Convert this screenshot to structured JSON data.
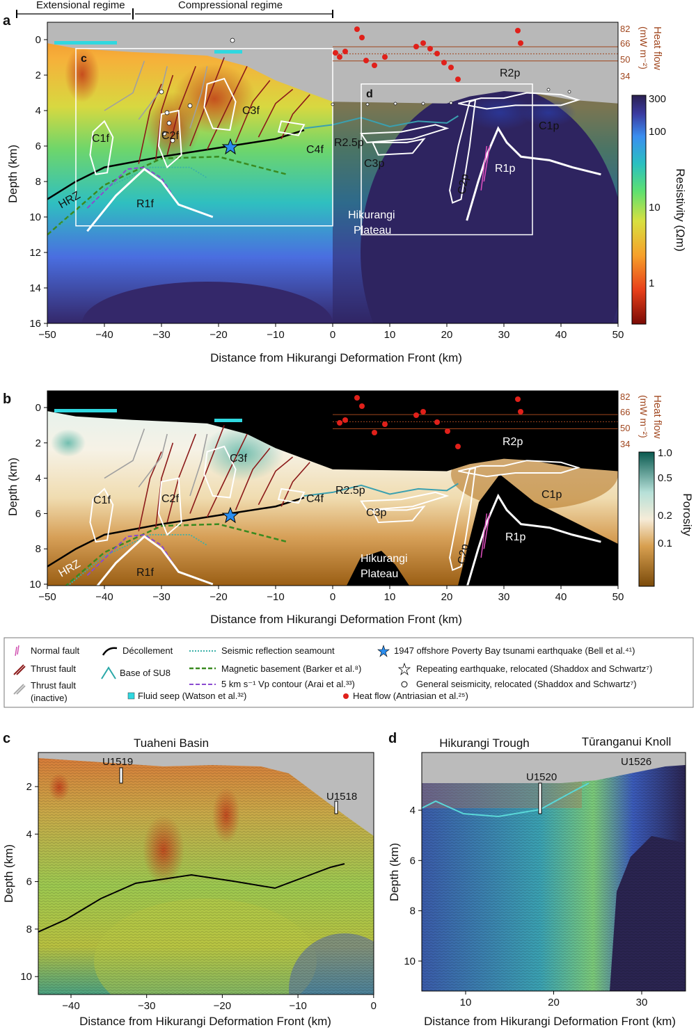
{
  "top_labels": {
    "extensional": "Extensional regime",
    "compressional": "Compressional regime"
  },
  "panel_a": {
    "letter": "a",
    "xlabel": "Distance from Hikurangi Deformation Front (km)",
    "ylabel": "Depth (km)",
    "x_ticks": [
      "−50",
      "−40",
      "−30",
      "−20",
      "−10",
      "0",
      "10",
      "20",
      "30",
      "40",
      "50"
    ],
    "y_ticks": [
      "0",
      "2",
      "4",
      "6",
      "8",
      "10",
      "12",
      "14",
      "16"
    ],
    "heat_flow_ticks": [
      "82",
      "66",
      "50",
      "34"
    ],
    "heat_flow_label": "Heat flow",
    "heat_flow_units": "(mW m⁻²)",
    "colorbar_label": "Resistivity (Ωm)",
    "colorbar_ticks": [
      "300",
      "100",
      "10",
      "1"
    ],
    "box_c": "c",
    "box_d": "d",
    "features": {
      "c1f": "C1f",
      "c2f": "C2f",
      "c3f": "C3f",
      "c4f": "C4f",
      "r1f": "R1f",
      "hrz": "HRZ",
      "r2p": "R2p",
      "r25p": "R2.5p",
      "c3p": "C3p",
      "c2p": "C2p",
      "r1p": "R1p",
      "c1p": "C1p",
      "plateau1": "Hikurangi",
      "plateau2": "Plateau"
    }
  },
  "panel_b": {
    "letter": "b",
    "xlabel": "Distance from Hikurangi Deformation Front (km)",
    "ylabel": "Depth (km)",
    "x_ticks": [
      "−50",
      "−40",
      "−30",
      "−20",
      "−10",
      "0",
      "10",
      "20",
      "30",
      "40",
      "50"
    ],
    "y_ticks": [
      "0",
      "2",
      "4",
      "6",
      "8",
      "10"
    ],
    "heat_flow_ticks": [
      "82",
      "66",
      "50",
      "34"
    ],
    "heat_flow_label": "Heat flow",
    "heat_flow_units": "(mW m⁻²)",
    "colorbar_label": "Porosity",
    "colorbar_ticks": [
      "1.0",
      "0.5",
      "0.2",
      "0.1"
    ]
  },
  "legend": {
    "normal_fault": "Normal fault",
    "thrust_fault": "Thrust fault",
    "thrust_inactive_1": "Thrust fault",
    "thrust_inactive_2": "(inactive)",
    "decollement": "Décollement",
    "base_su8": "Base of SU8",
    "seamount": "Seismic reflection seamount",
    "magnetic": "Magnetic basement (Barker et al.⁸)",
    "vp": "5 km s⁻¹ Vp contour (Arai et al.³³)",
    "fluid_seep": "Fluid seep (Watson et al.³²)",
    "eq1947": "1947 offshore Poverty Bay tsunami earthquake (Bell et al.⁴¹)",
    "repeating": "Repeating earthquake, relocated (Shaddox and Schwartz⁷)",
    "general": "General seismicity, relocated  (Shaddox and Schwartz⁷)",
    "heat_flow": "Heat flow (Antriasian et al.²⁵)"
  },
  "panel_c": {
    "letter": "c",
    "title": "Tuaheni Basin",
    "xlabel": "Distance from Hikurangi Deformation Front (km)",
    "ylabel": "Depth (km)",
    "x_ticks": [
      "−40",
      "−30",
      "−20",
      "−10",
      "0"
    ],
    "y_ticks": [
      "2",
      "4",
      "6",
      "8",
      "10"
    ],
    "wells": [
      "U1519",
      "U1518"
    ]
  },
  "panel_d": {
    "letter": "d",
    "title_left": "Hikurangi Trough",
    "title_right": "Tūranganui Knoll",
    "xlabel": "Distance from Hikurangi Deformation Front (km)",
    "ylabel": "Depth (km)",
    "x_ticks": [
      "10",
      "20",
      "30"
    ],
    "y_ticks": [
      "4",
      "6",
      "8",
      "10"
    ],
    "wells": [
      "U1520",
      "U1526"
    ]
  },
  "colors": {
    "heat_flow": "#e0201a",
    "seep": "#30d8e0",
    "decollement": "#000000",
    "thrust": "#8b1a1a",
    "axis_brown": "#a0461e"
  }
}
